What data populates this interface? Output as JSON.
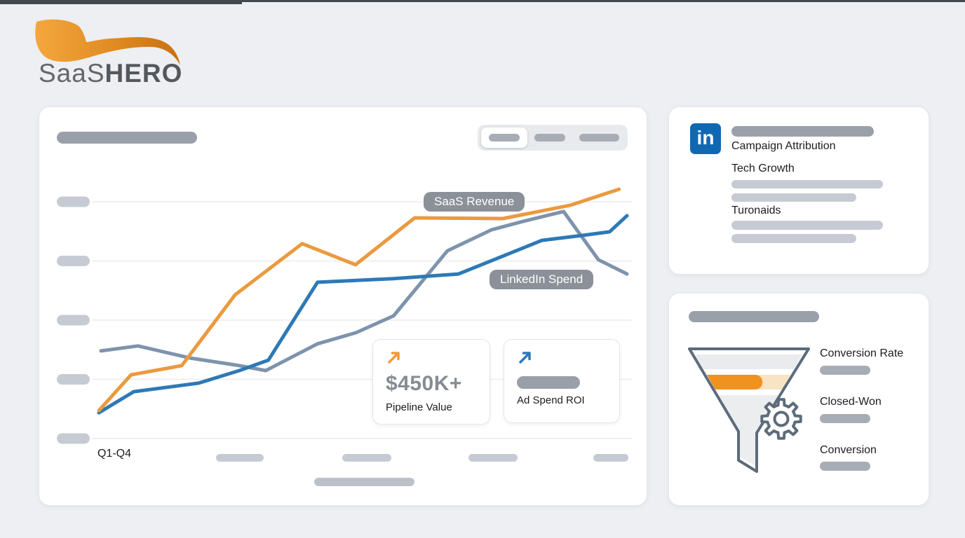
{
  "brand": {
    "name_light": "SaaS",
    "name_bold": "HERO"
  },
  "colors": {
    "bg": "#edeff2",
    "panel-border": "#e5e7ea",
    "grid": "#ececee",
    "pill-dark": "#9aa0a9",
    "pill-light": "#c6cbd3",
    "pill-mid": "#bcc1c9",
    "pill-stage": "#a8adb5",
    "chip": "#8b9099",
    "text-dark": "#1b1d21",
    "value-gray": "#878c93",
    "orange": "#EA9A3E",
    "callout-orange": "#F09A3A",
    "blue": "#2E79B7",
    "slate": "#7E93AC",
    "slate-dark": "#5D6B7A",
    "linkedin-blue": "#1168B2",
    "funnel-orange": "#F0921F",
    "funnel-peach": "#F8E3C3",
    "band-gray": "#E9EBEE",
    "accent-bar": "#43484E"
  },
  "chart_data": {
    "type": "line",
    "x_axis_label": "Q1-Q4",
    "y_scale": "relative 0-100, unlabeled (placeholder pill ticks)",
    "x_scale": "relative 0-100 across Q1-Q4, unlabeled (placeholder pill ticks)",
    "gridline_values": [
      0,
      25,
      50,
      75,
      100
    ],
    "series": [
      {
        "name": "",
        "color": "#7E93AC",
        "points": [
          [
            0.4,
            37
          ],
          [
            7.4,
            39.1
          ],
          [
            17.3,
            34
          ],
          [
            26.6,
            30.8
          ],
          [
            31.6,
            28.7
          ],
          [
            41.4,
            40
          ],
          [
            48.7,
            44.7
          ],
          [
            55.8,
            51.8
          ],
          [
            66,
            79.3
          ],
          [
            74.4,
            88.2
          ],
          [
            80.3,
            91.7
          ],
          [
            88,
            95.9
          ],
          [
            94.6,
            75.5
          ],
          [
            100,
            69.5
          ]
        ]
      },
      {
        "name": "LinkedIn Spend",
        "color": "#2E79B7",
        "points": [
          [
            0,
            10.9
          ],
          [
            6.6,
            19.8
          ],
          [
            18.9,
            23.4
          ],
          [
            26.6,
            28.7
          ],
          [
            32.1,
            33.1
          ],
          [
            41.4,
            66
          ],
          [
            55.8,
            67.5
          ],
          [
            68.1,
            69.5
          ],
          [
            83.9,
            83.7
          ],
          [
            91.6,
            85.8
          ],
          [
            96.7,
            87.3
          ],
          [
            100,
            94.1
          ]
        ]
      },
      {
        "name": "SaaS Revenue",
        "color": "#EA9A3E",
        "points": [
          [
            0,
            11.8
          ],
          [
            6.1,
            26.9
          ],
          [
            15.7,
            30.8
          ],
          [
            25.8,
            60.7
          ],
          [
            38.5,
            82.3
          ],
          [
            48.6,
            73.4
          ],
          [
            59.8,
            93.2
          ],
          [
            76.5,
            92.9
          ],
          [
            89.2,
            98.5
          ],
          [
            98.5,
            105.3
          ]
        ]
      }
    ]
  },
  "main_panel": {
    "x_axis_label": "Q1-Q4",
    "callouts": [
      {
        "value": "$450K+",
        "label": "Pipeline Value"
      },
      {
        "value": "",
        "label": "Ad Spend ROI"
      }
    ]
  },
  "attribution_panel": {
    "icon_text": "in",
    "title": "Campaign Attribution",
    "items": [
      "Tech Growth",
      "Turonaids"
    ]
  },
  "funnel_panel": {
    "stages": [
      {
        "label": "Conversion Rate"
      },
      {
        "label": "Closed-Won"
      },
      {
        "label": "Conversion"
      }
    ]
  }
}
